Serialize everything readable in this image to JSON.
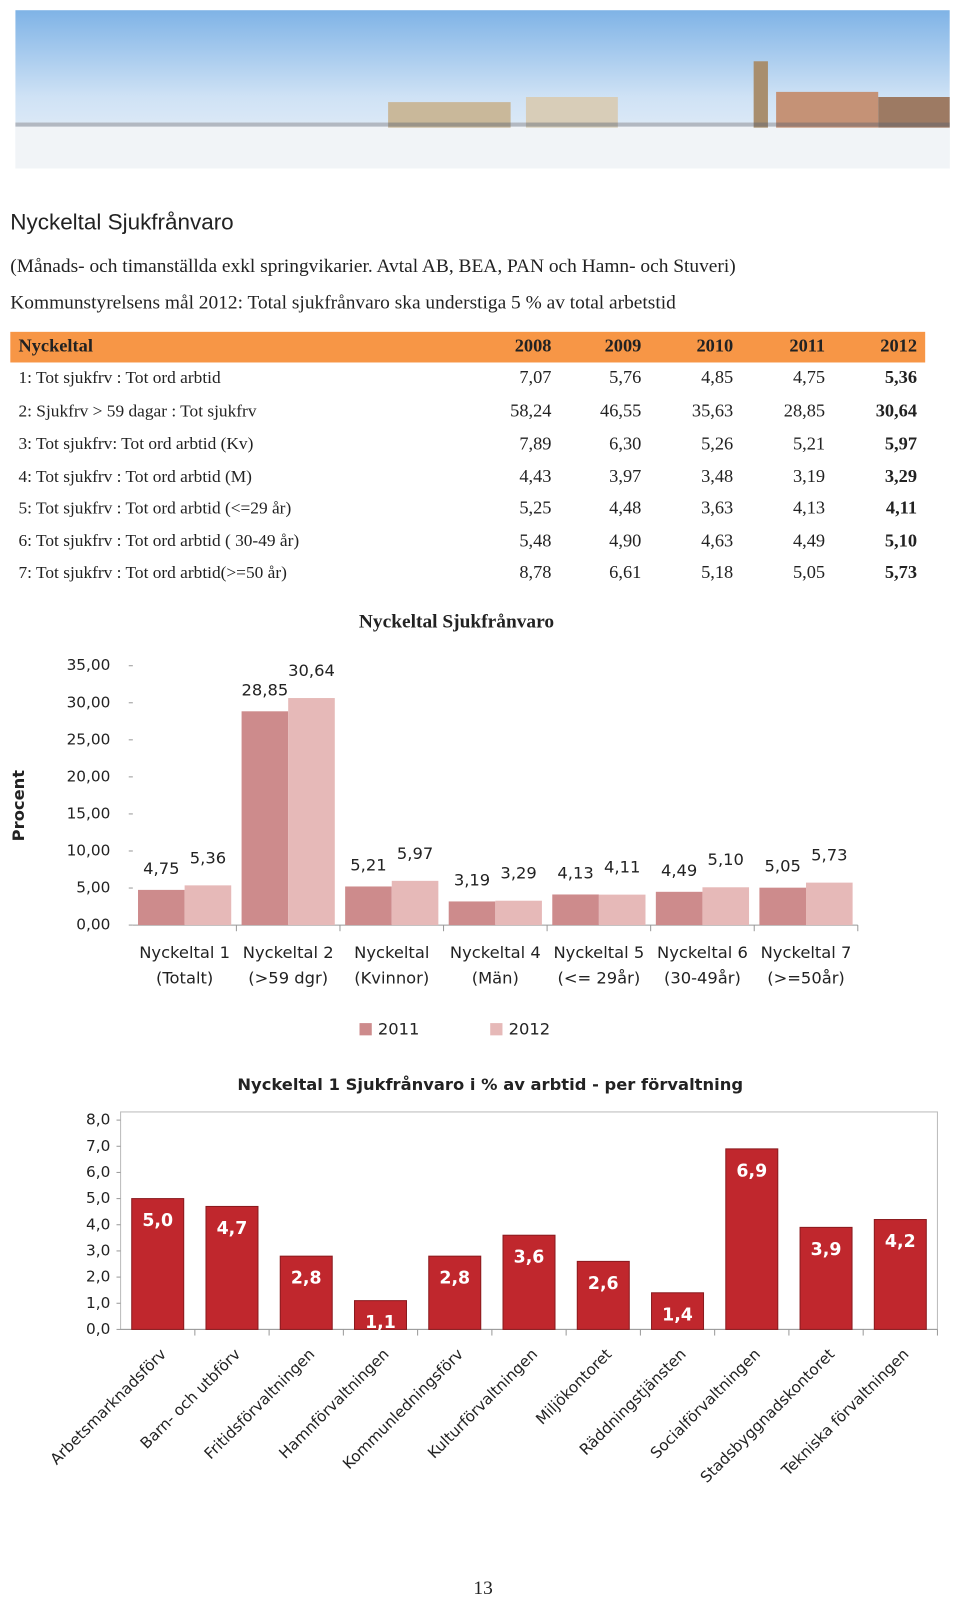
{
  "title": "Nyckeltal Sjukfrånvaro",
  "notes": [
    "(Månads- och timanställda exkl springvikarier. Avtal AB, BEA, PAN och Hamn- och Stuveri)",
    "Kommunstyrelsens mål 2012: Total sjukfrånvaro ska understiga 5 % av total arbetstid"
  ],
  "table": {
    "header": [
      "Nyckeltal",
      "2008",
      "2009",
      "2010",
      "2011",
      "2012"
    ],
    "rows": [
      [
        "1: Tot sjukfrv : Tot ord arbtid",
        "7,07",
        "5,76",
        "4,85",
        "4,75",
        "5,36"
      ],
      [
        "2: Sjukfrv > 59 dagar : Tot sjukfrv",
        "58,24",
        "46,55",
        "35,63",
        "28,85",
        "30,64"
      ],
      [
        "3: Tot sjukfrv: Tot ord arbtid (Kv)",
        "7,89",
        "6,30",
        "5,26",
        "5,21",
        "5,97"
      ],
      [
        "4: Tot sjukfrv : Tot ord arbtid (M)",
        "4,43",
        "3,97",
        "3,48",
        "3,19",
        "3,29"
      ],
      [
        "5: Tot sjukfrv : Tot ord arbtid (<=29 år)",
        "5,25",
        "4,48",
        "3,63",
        "4,13",
        "4,11"
      ],
      [
        "6: Tot sjukfrv : Tot ord arbtid ( 30-49 år)",
        "5,48",
        "4,90",
        "4,63",
        "4,49",
        "5,10"
      ],
      [
        "7: Tot sjukfrv : Tot ord arbtid(>=50 år)",
        "8,78",
        "6,61",
        "5,18",
        "5,05",
        "5,73"
      ]
    ]
  },
  "chart_data": [
    {
      "type": "bar",
      "title": "Nyckeltal Sjukfrånvaro",
      "y_label": "Procent",
      "categories": [
        [
          "Nyckeltal 1",
          "(Totalt)"
        ],
        [
          "Nyckeltal 2",
          "(>59 dgr)"
        ],
        [
          "Nyckeltal",
          "(Kvinnor)"
        ],
        [
          "Nyckeltal 4",
          "(Män)"
        ],
        [
          "Nyckeltal 5",
          "(<= 29år)"
        ],
        [
          "Nyckeltal 6",
          "(30-49år)"
        ],
        [
          "Nyckeltal 7",
          "(>=50år)"
        ]
      ],
      "series": [
        {
          "name": "2011",
          "color": "#cd8b8c",
          "values": [
            4.75,
            28.85,
            5.21,
            3.19,
            4.13,
            4.49,
            5.05
          ],
          "value_labels": [
            "4,75",
            "28,85",
            "5,21",
            "3,19",
            "4,13",
            "4,49",
            "5,05"
          ]
        },
        {
          "name": "2012",
          "color": "#e6b9b8",
          "values": [
            5.36,
            30.64,
            5.97,
            3.29,
            4.11,
            5.1,
            5.73
          ],
          "value_labels": [
            "5,36",
            "30,64",
            "5,97",
            "3,29",
            "4,11",
            "5,10",
            "5,73"
          ]
        }
      ],
      "ylim": [
        0,
        35
      ],
      "yticks": [
        {
          "value": 0,
          "label": "0,00"
        },
        {
          "value": 5,
          "label": "5,00"
        },
        {
          "value": 10,
          "label": "10,00"
        },
        {
          "value": 15,
          "label": "15,00"
        },
        {
          "value": 20,
          "label": "20,00"
        },
        {
          "value": 25,
          "label": "25,00"
        },
        {
          "value": 30,
          "label": "30,00"
        },
        {
          "value": 35,
          "label": "35,00"
        }
      ],
      "legend": "bottom"
    },
    {
      "type": "bar",
      "title": "Nyckeltal 1 Sjukfrånvaro i % av arbtid - per förvaltning",
      "categories": [
        "Arbetsmarknadsförv",
        "Barn- och utbförv",
        "Fritidsförvaltningen",
        "Hamnförvaltningen",
        "Kommunledningsförv",
        "Kulturförvaltningen",
        "Miljökontoret",
        "Räddningstjänsten",
        "Socialförvaltningen",
        "Stadsbyggnadskontoret",
        "Tekniska förvaltningen"
      ],
      "values": [
        5.0,
        4.7,
        2.8,
        1.1,
        2.8,
        3.6,
        2.6,
        1.4,
        6.9,
        3.9,
        4.2
      ],
      "value_labels": [
        "5,0",
        "4,7",
        "2,8",
        "1,1",
        "2,8",
        "3,6",
        "2,6",
        "1,4",
        "6,9",
        "3,9",
        "4,2"
      ],
      "color": "#c0272d",
      "ylim": [
        0,
        8
      ],
      "yticks": [
        {
          "value": 0,
          "label": "0,0"
        },
        {
          "value": 1,
          "label": "1,0"
        },
        {
          "value": 2,
          "label": "2,0"
        },
        {
          "value": 3,
          "label": "3,0"
        },
        {
          "value": 4,
          "label": "4,0"
        },
        {
          "value": 5,
          "label": "5,0"
        },
        {
          "value": 6,
          "label": "6,0"
        },
        {
          "value": 7,
          "label": "7,0"
        },
        {
          "value": 8,
          "label": "8,0"
        }
      ]
    }
  ],
  "page_number": "13"
}
